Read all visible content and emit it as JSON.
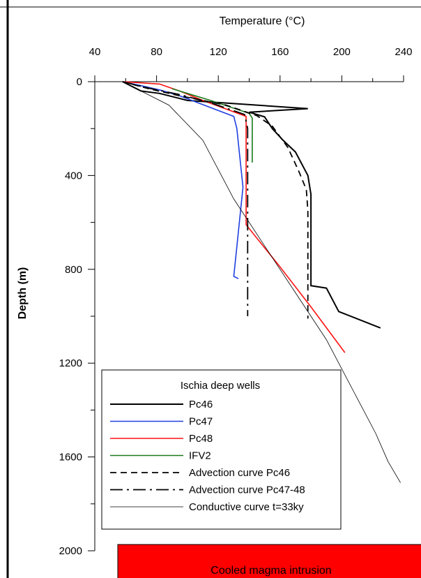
{
  "chart_data": {
    "type": "line",
    "xlabel": "Temperature (°C)",
    "ylabel": "Depth (m)",
    "x_ticks": [
      "40",
      "80",
      "120",
      "160",
      "200",
      "240"
    ],
    "y_ticks": [
      "0",
      "400",
      "800",
      "1200",
      "1600",
      "2000"
    ],
    "xlim": [
      40,
      240
    ],
    "ylim": [
      2000,
      0
    ],
    "x_axis_position": "top",
    "y_axis_inverted": true,
    "grid": false,
    "legend_title": "Ischia deep wells",
    "legend_position": "bottom-left",
    "series": [
      {
        "name": "Pc46",
        "color": "#000000",
        "style": "solid",
        "width": 2,
        "points": [
          [
            58,
            0
          ],
          [
            70,
            40
          ],
          [
            82,
            50
          ],
          [
            100,
            80
          ],
          [
            178,
            115
          ],
          [
            140,
            130
          ],
          [
            150,
            150
          ],
          [
            155,
            200
          ],
          [
            162,
            250
          ],
          [
            170,
            300
          ],
          [
            178,
            400
          ],
          [
            180,
            480
          ],
          [
            180,
            870
          ],
          [
            190,
            880
          ],
          [
            198,
            980
          ],
          [
            225,
            1050
          ]
        ]
      },
      {
        "name": "Pc47",
        "color": "#1f3fe0",
        "style": "solid",
        "width": 1.6,
        "points": [
          [
            58,
            0
          ],
          [
            72,
            20
          ],
          [
            82,
            35
          ],
          [
            95,
            60
          ],
          [
            130,
            148
          ],
          [
            132,
            200
          ],
          [
            136,
            450
          ],
          [
            130,
            830
          ],
          [
            133,
            840
          ]
        ]
      },
      {
        "name": "Pc48",
        "color": "#ff1010",
        "style": "solid",
        "width": 1.6,
        "points": [
          [
            58,
            0
          ],
          [
            82,
            10
          ],
          [
            95,
            40
          ],
          [
            110,
            80
          ],
          [
            138,
            148
          ],
          [
            138,
            200
          ],
          [
            138,
            610
          ],
          [
            160,
            790
          ],
          [
            180,
            960
          ],
          [
            202,
            1155
          ]
        ]
      },
      {
        "name": "IFV2",
        "color": "#1a7a1a",
        "style": "solid",
        "width": 1.6,
        "points": [
          [
            90,
            30
          ],
          [
            100,
            50
          ],
          [
            115,
            80
          ],
          [
            140,
            135
          ],
          [
            142,
            155
          ],
          [
            142,
            345
          ]
        ]
      },
      {
        "name": "Advection curve Pc46",
        "color": "#000000",
        "style": "dash",
        "width": 1.8,
        "points": [
          [
            58,
            0
          ],
          [
            75,
            30
          ],
          [
            95,
            60
          ],
          [
            125,
            100
          ],
          [
            145,
            145
          ],
          [
            155,
            190
          ],
          [
            165,
            280
          ],
          [
            172,
            380
          ],
          [
            177,
            460
          ],
          [
            178,
            550
          ],
          [
            178,
            1010
          ]
        ]
      },
      {
        "name": "Advection curve Pc47-48",
        "color": "#000000",
        "style": "dashdot",
        "width": 1.8,
        "points": [
          [
            58,
            0
          ],
          [
            75,
            28
          ],
          [
            95,
            55
          ],
          [
            115,
            90
          ],
          [
            137,
            140
          ],
          [
            139,
            200
          ],
          [
            139,
            1000
          ]
        ]
      },
      {
        "name": "Conductive curve t=33ky",
        "color": "#000000",
        "style": "solid",
        "width": 0.8,
        "points": [
          [
            58,
            0
          ],
          [
            88,
            100
          ],
          [
            110,
            250
          ],
          [
            130,
            500
          ],
          [
            150,
            700
          ],
          [
            170,
            900
          ],
          [
            190,
            1100
          ],
          [
            210,
            1350
          ],
          [
            222,
            1500
          ],
          [
            230,
            1620
          ],
          [
            238,
            1710
          ]
        ]
      }
    ],
    "annotations": [
      {
        "text": "Cooled magma intrusion",
        "fill": "#ff0000"
      }
    ]
  }
}
